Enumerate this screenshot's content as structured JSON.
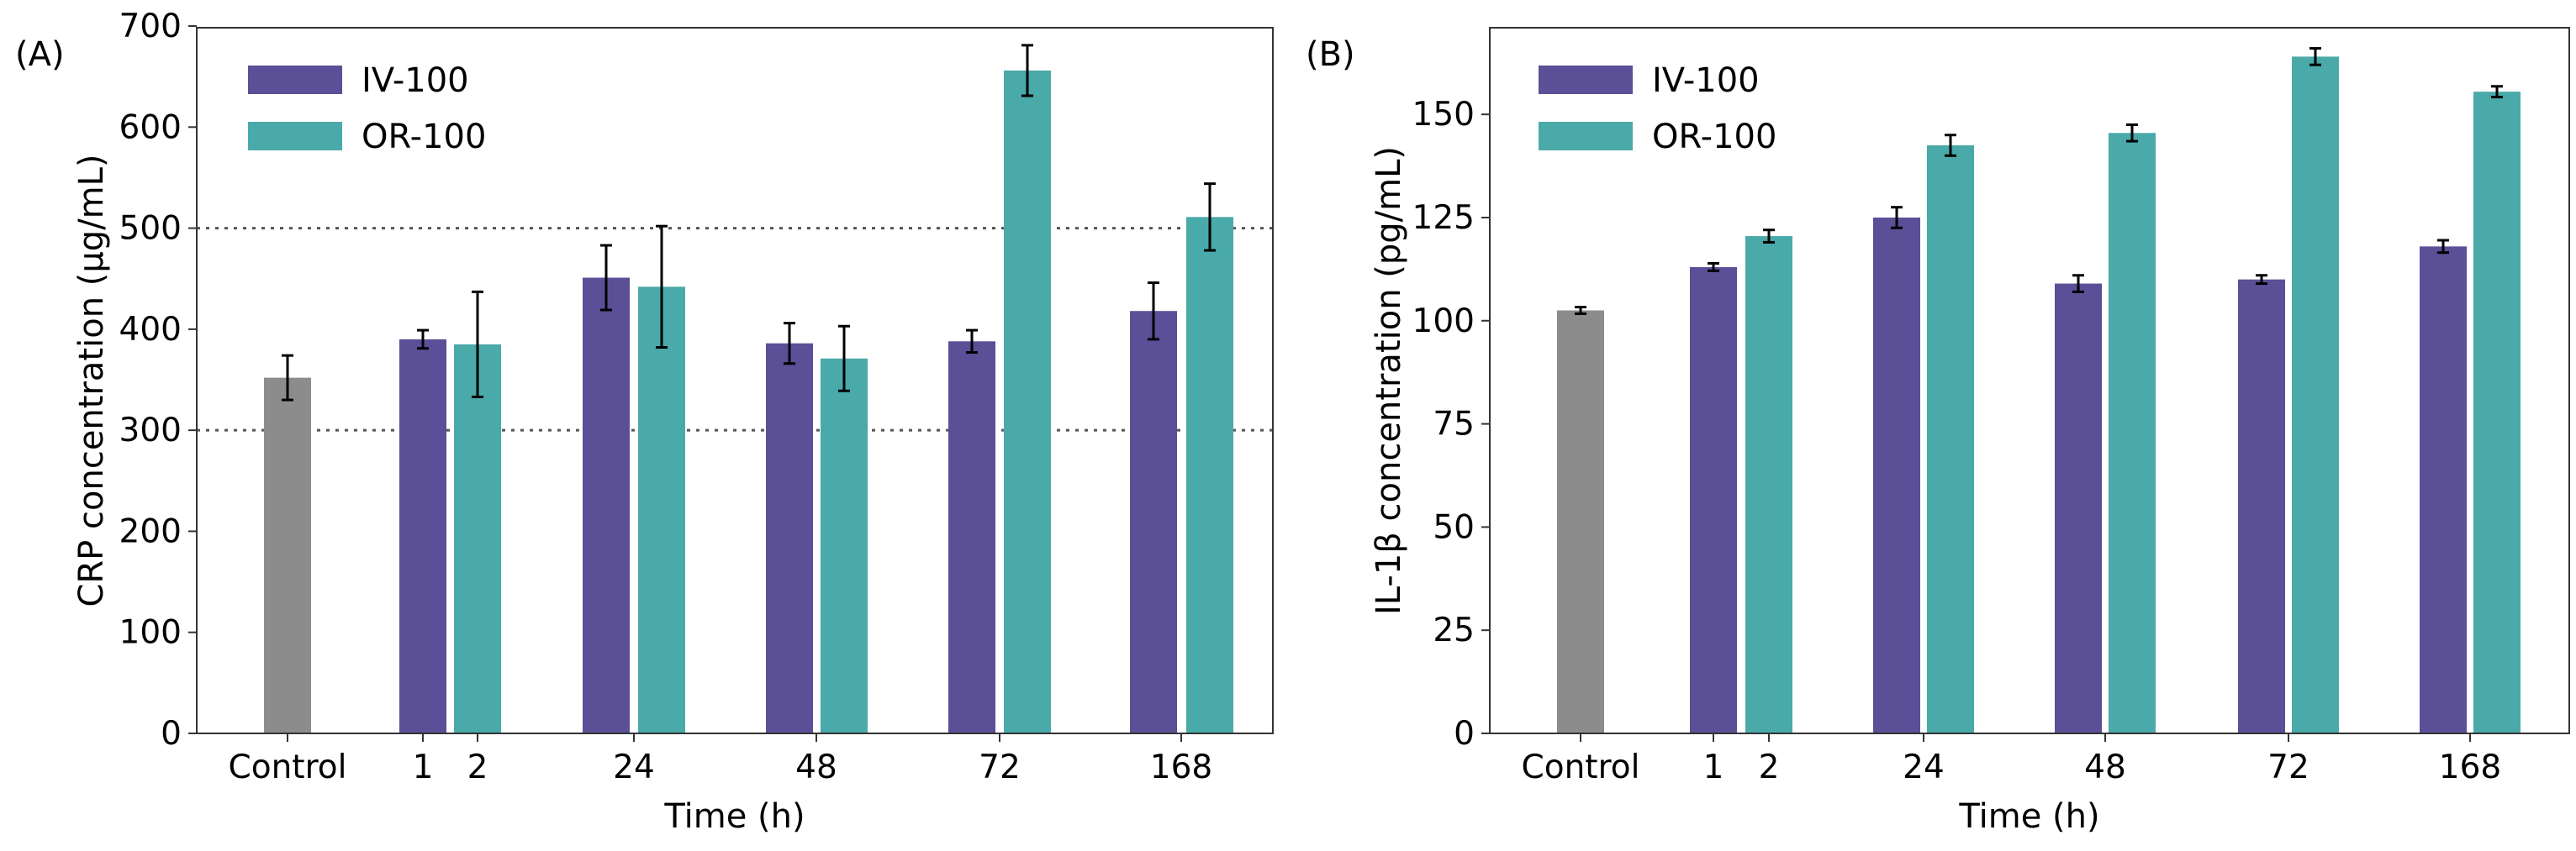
{
  "colors": {
    "control": "#8c8c8c",
    "iv": "#5b4f97",
    "or": "#4aa9a9",
    "ref_line": "#555555"
  },
  "chart_data": [
    {
      "panel_label": "(A)",
      "type": "bar",
      "xlabel": "Time (h)",
      "ylabel": "CRP concentration (µg/mL)",
      "ylim": [
        0,
        700
      ],
      "yticks": [
        0,
        100,
        200,
        300,
        400,
        500,
        600,
        700
      ],
      "reference_lines": [
        300,
        500
      ],
      "legend": [
        "IV-100",
        "OR-100"
      ],
      "legend_placement": "top-left",
      "tick_labels": [
        "Control",
        "1",
        "2",
        "24",
        "48",
        "72",
        "168"
      ],
      "bars": [
        {
          "series": "Control",
          "x_label": "Control",
          "value": 352,
          "error": 22
        },
        {
          "series": "IV-100",
          "x_label": "1",
          "value": 390,
          "error": 9
        },
        {
          "series": "OR-100",
          "x_label": "2",
          "value": 385,
          "error": 52
        },
        {
          "series": "IV-100",
          "x_label": "24",
          "value": 451,
          "error": 32
        },
        {
          "series": "OR-100",
          "x_label": "24",
          "value": 442,
          "error": 60
        },
        {
          "series": "IV-100",
          "x_label": "48",
          "value": 386,
          "error": 20
        },
        {
          "series": "OR-100",
          "x_label": "48",
          "value": 371,
          "error": 32
        },
        {
          "series": "IV-100",
          "x_label": "72",
          "value": 388,
          "error": 11
        },
        {
          "series": "OR-100",
          "x_label": "72",
          "value": 656,
          "error": 25
        },
        {
          "series": "IV-100",
          "x_label": "168",
          "value": 418,
          "error": 28
        },
        {
          "series": "OR-100",
          "x_label": "168",
          "value": 511,
          "error": 33
        }
      ]
    },
    {
      "panel_label": "(B)",
      "type": "bar",
      "xlabel": "Time (h)",
      "ylabel": "IL-1β concentration (pg/mL)",
      "ylim": [
        0,
        170
      ],
      "yticks": [
        0,
        25,
        50,
        75,
        100,
        125,
        150
      ],
      "reference_lines": [],
      "legend": [
        "IV-100",
        "OR-100"
      ],
      "legend_placement": "top-left",
      "tick_labels": [
        "Control",
        "1",
        "2",
        "24",
        "48",
        "72",
        "168"
      ],
      "bars": [
        {
          "series": "Control",
          "x_label": "Control",
          "value": 102.5,
          "error": 0.8
        },
        {
          "series": "IV-100",
          "x_label": "1",
          "value": 113,
          "error": 0.9
        },
        {
          "series": "OR-100",
          "x_label": "2",
          "value": 120.5,
          "error": 1.5
        },
        {
          "series": "IV-100",
          "x_label": "24",
          "value": 125,
          "error": 2.5
        },
        {
          "series": "OR-100",
          "x_label": "24",
          "value": 142.5,
          "error": 2.5
        },
        {
          "series": "IV-100",
          "x_label": "48",
          "value": 109,
          "error": 2
        },
        {
          "series": "OR-100",
          "x_label": "48",
          "value": 145.5,
          "error": 2
        },
        {
          "series": "IV-100",
          "x_label": "72",
          "value": 110,
          "error": 1
        },
        {
          "series": "OR-100",
          "x_label": "72",
          "value": 164,
          "error": 2
        },
        {
          "series": "IV-100",
          "x_label": "168",
          "value": 118,
          "error": 1.5
        },
        {
          "series": "OR-100",
          "x_label": "168",
          "value": 155.5,
          "error": 1.3
        }
      ]
    }
  ]
}
